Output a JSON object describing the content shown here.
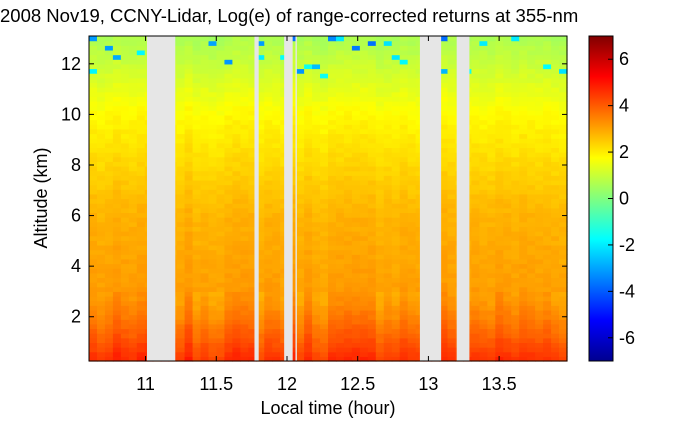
{
  "chart_data": {
    "type": "heatmap",
    "title": "2008 Nov19, CCNY-Lidar, Log(e) of range-corrected returns at 355-nm",
    "xlabel": "Local time (hour)",
    "ylabel": "Altitude (km)",
    "xlim": [
      10.6,
      13.98
    ],
    "ylim": [
      0.25,
      13.1
    ],
    "x_ticks": [
      {
        "value": 11,
        "label": "11"
      },
      {
        "value": 11.5,
        "label": "11.5"
      },
      {
        "value": 12,
        "label": "12"
      },
      {
        "value": 12.5,
        "label": "12.5"
      },
      {
        "value": 13,
        "label": "13"
      },
      {
        "value": 13.5,
        "label": "13.5"
      }
    ],
    "y_ticks": [
      {
        "value": 2,
        "label": "2"
      },
      {
        "value": 4,
        "label": "4"
      },
      {
        "value": 6,
        "label": "6"
      },
      {
        "value": 8,
        "label": "8"
      },
      {
        "value": 10,
        "label": "10"
      },
      {
        "value": 12,
        "label": "12"
      }
    ],
    "colorbar": {
      "range": [
        -7,
        7
      ],
      "ticks": [
        {
          "value": -6,
          "label": "-6"
        },
        {
          "value": -4,
          "label": "-4"
        },
        {
          "value": -2,
          "label": "-2"
        },
        {
          "value": 0,
          "label": "0"
        },
        {
          "value": 2,
          "label": "2"
        },
        {
          "value": 4,
          "label": "4"
        },
        {
          "value": 6,
          "label": "6"
        }
      ],
      "colormap": "jet"
    },
    "data_gaps": [
      {
        "start": 11.01,
        "end": 11.21
      },
      {
        "start": 11.77,
        "end": 11.8
      },
      {
        "start": 11.98,
        "end": 12.04
      },
      {
        "start": 12.06,
        "end": 12.07
      },
      {
        "start": 12.94,
        "end": 13.09
      },
      {
        "start": 13.2,
        "end": 13.29
      }
    ],
    "gap_color": "#e6e6e6",
    "value_profile": [
      {
        "altitude": 0.25,
        "value": 4.6
      },
      {
        "altitude": 0.6,
        "value": 4.4
      },
      {
        "altitude": 1.0,
        "value": 4.1
      },
      {
        "altitude": 1.5,
        "value": 3.8
      },
      {
        "altitude": 2.0,
        "value": 3.5
      },
      {
        "altitude": 2.4,
        "value": 3.3
      },
      {
        "altitude": 2.7,
        "value": 3.15
      },
      {
        "altitude": 4.0,
        "value": 3.0
      },
      {
        "altitude": 6.0,
        "value": 2.8
      },
      {
        "altitude": 8.0,
        "value": 2.3
      },
      {
        "altitude": 10.0,
        "value": 1.8
      },
      {
        "altitude": 11.0,
        "value": 1.4
      },
      {
        "altitude": 12.0,
        "value": 1.0
      },
      {
        "altitude": 13.1,
        "value": 0.6
      }
    ]
  }
}
